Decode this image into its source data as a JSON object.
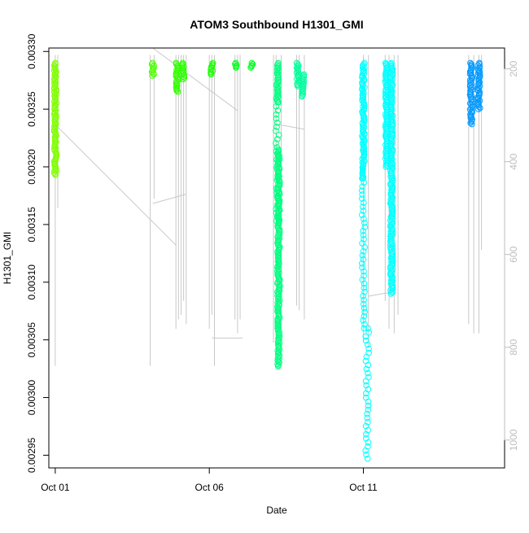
{
  "chart_data": {
    "type": "scatter",
    "title": "ATOM3 Southbound H1301_GMI",
    "xlabel": "Date",
    "ylabel": "H1301_GMI",
    "xlim": [
      "2016-09-30T19:00",
      "2016-10-15T14:00"
    ],
    "ylim": [
      0.002939,
      0.003303
    ],
    "y2lim": [
      1060,
      155
    ],
    "x_ticks": [
      {
        "date": "2016-10-01",
        "label": "Oct 01"
      },
      {
        "date": "2016-10-06",
        "label": "Oct 06"
      },
      {
        "date": "2016-10-11",
        "label": "Oct 11"
      }
    ],
    "y_ticks": [
      {
        "value": 0.00295,
        "label": "0.00295"
      },
      {
        "value": 0.003,
        "label": "0.00300"
      },
      {
        "value": 0.00305,
        "label": "0.00305"
      },
      {
        "value": 0.0031,
        "label": "0.00310"
      },
      {
        "value": 0.00315,
        "label": "0.00315"
      },
      {
        "value": 0.0032,
        "label": "0.00320"
      },
      {
        "value": 0.00325,
        "label": "0.00325"
      },
      {
        "value": 0.0033,
        "label": "0.00330"
      }
    ],
    "y2_ticks": [
      {
        "value": 200,
        "label": "200"
      },
      {
        "value": 400,
        "label": "400"
      },
      {
        "value": 600,
        "label": "600"
      },
      {
        "value": 800,
        "label": "800"
      },
      {
        "value": 1000,
        "label": "1000"
      }
    ],
    "grid": false,
    "point_series": [
      {
        "date": "2016-10-01T00:00",
        "ymin": 0.003193,
        "ymax": 0.00329,
        "color": "#80ff00",
        "sparse": false
      },
      {
        "date": "2016-10-04T04:00",
        "ymin": 0.003279,
        "ymax": 0.00329,
        "color": "#4cff00",
        "sparse": false
      },
      {
        "date": "2016-10-04T23:00",
        "ymin": 0.003265,
        "ymax": 0.00329,
        "color": "#33ff00",
        "sparse": false
      },
      {
        "date": "2016-10-05T04:00",
        "ymin": 0.003276,
        "ymax": 0.00329,
        "color": "#2bff00",
        "sparse": false
      },
      {
        "date": "2016-10-06T02:00",
        "ymin": 0.00328,
        "ymax": 0.00329,
        "color": "#1aff00",
        "sparse": false
      },
      {
        "date": "2016-10-06T21:00",
        "ymin": 0.003286,
        "ymax": 0.00329,
        "color": "#00ff1a",
        "sparse": false
      },
      {
        "date": "2016-10-07T09:00",
        "ymin": 0.003286,
        "ymax": 0.00329,
        "color": "#00ff20",
        "sparse": false
      },
      {
        "date": "2016-10-08T05:00",
        "ymin": 0.003256,
        "ymax": 0.00329,
        "color": "#00ff80",
        "sparse": false
      },
      {
        "date": "2016-10-08T05:00",
        "ymin": 0.003153,
        "ymax": 0.003256,
        "color": "#00ff80",
        "sparse": true
      },
      {
        "date": "2016-10-08T06:00",
        "ymin": 0.003153,
        "ymax": 0.003215,
        "color": "#00ff80",
        "sparse": false
      },
      {
        "date": "2016-10-08T06:00",
        "ymin": 0.003027,
        "ymax": 0.003153,
        "color": "#00ff80",
        "sparse": false
      },
      {
        "date": "2016-10-08T21:00",
        "ymin": 0.00327,
        "ymax": 0.00329,
        "color": "#00ff9a",
        "sparse": false
      },
      {
        "date": "2016-10-09T01:00",
        "ymin": 0.003261,
        "ymax": 0.00328,
        "color": "#00ff9f",
        "sparse": false
      },
      {
        "date": "2016-10-11T00:00",
        "ymin": 0.00319,
        "ymax": 0.00329,
        "color": "#00ffff",
        "sparse": false
      },
      {
        "date": "2016-10-11T00:00",
        "ymin": 0.00306,
        "ymax": 0.00319,
        "color": "#00ffff",
        "sparse": true
      },
      {
        "date": "2016-10-11T03:00",
        "ymin": 0.002947,
        "ymax": 0.00306,
        "color": "#00ffff",
        "sparse": true
      },
      {
        "date": "2016-10-11T18:00",
        "ymin": 0.0032,
        "ymax": 0.00329,
        "color": "#00ffff",
        "sparse": false
      },
      {
        "date": "2016-10-11T22:00",
        "ymin": 0.00309,
        "ymax": 0.00329,
        "color": "#00ffff",
        "sparse": false
      },
      {
        "date": "2016-10-14T12:00",
        "ymin": 0.003237,
        "ymax": 0.00329,
        "color": "#0099ff",
        "sparse": false
      },
      {
        "date": "2016-10-14T18:00",
        "ymin": 0.00325,
        "ymax": 0.00329,
        "color": "#0099ff",
        "sparse": false
      }
    ],
    "profile_lines_y2": [
      {
        "date": "2016-10-01T00:00",
        "depth_min": 170,
        "depth_max": 840
      },
      {
        "date": "2016-10-01T02:00",
        "depth_min": 170,
        "depth_max": 500
      },
      {
        "date": "2016-10-04T02:00",
        "depth_min": 170,
        "depth_max": 840
      },
      {
        "date": "2016-10-04T05:00",
        "depth_min": 170,
        "depth_max": 480
      },
      {
        "date": "2016-10-04T22:00",
        "depth_min": 170,
        "depth_max": 760
      },
      {
        "date": "2016-10-05T00:00",
        "depth_min": 170,
        "depth_max": 740
      },
      {
        "date": "2016-10-05T02:00",
        "depth_min": 170,
        "depth_max": 730
      },
      {
        "date": "2016-10-05T04:00",
        "depth_min": 170,
        "depth_max": 700
      },
      {
        "date": "2016-10-05T06:00",
        "depth_min": 170,
        "depth_max": 750
      },
      {
        "date": "2016-10-06T00:00",
        "depth_min": 170,
        "depth_max": 760
      },
      {
        "date": "2016-10-06T02:00",
        "depth_min": 170,
        "depth_max": 730
      },
      {
        "date": "2016-10-06T04:00",
        "depth_min": 170,
        "depth_max": 840
      },
      {
        "date": "2016-10-06T20:00",
        "depth_min": 170,
        "depth_max": 740
      },
      {
        "date": "2016-10-06T22:00",
        "depth_min": 170,
        "depth_max": 770
      },
      {
        "date": "2016-10-07T00:00",
        "depth_min": 170,
        "depth_max": 740
      },
      {
        "date": "2016-10-08T02:00",
        "depth_min": 170,
        "depth_max": 790
      },
      {
        "date": "2016-10-08T04:00",
        "depth_min": 170,
        "depth_max": 790
      },
      {
        "date": "2016-10-08T08:00",
        "depth_min": 170,
        "depth_max": 760
      },
      {
        "date": "2016-10-08T20:00",
        "depth_min": 170,
        "depth_max": 710
      },
      {
        "date": "2016-10-08T22:00",
        "depth_min": 170,
        "depth_max": 720
      },
      {
        "date": "2016-10-09T02:00",
        "depth_min": 170,
        "depth_max": 740
      },
      {
        "date": "2016-10-11T00:00",
        "depth_min": 170,
        "depth_max": 790
      },
      {
        "date": "2016-10-11T04:00",
        "depth_min": 170,
        "depth_max": 800
      },
      {
        "date": "2016-10-11T17:00",
        "depth_min": 170,
        "depth_max": 700
      },
      {
        "date": "2016-10-11T20:00",
        "depth_min": 170,
        "depth_max": 760
      },
      {
        "date": "2016-10-12T00:00",
        "depth_min": 170,
        "depth_max": 770
      },
      {
        "date": "2016-10-12T03:00",
        "depth_min": 170,
        "depth_max": 730
      },
      {
        "date": "2016-10-14T10:00",
        "depth_min": 170,
        "depth_max": 750
      },
      {
        "date": "2016-10-14T14:00",
        "depth_min": 170,
        "depth_max": 770
      },
      {
        "date": "2016-10-14T18:00",
        "depth_min": 170,
        "depth_max": 770
      },
      {
        "date": "2016-10-14T20:00",
        "depth_min": 170,
        "depth_max": 590
      }
    ],
    "transit_lines_y2": [
      {
        "from": [
          "2016-10-01T00:00",
          320
        ],
        "to": [
          "2016-10-04T22:00",
          580
        ]
      },
      {
        "from": [
          "2016-10-04T04:00",
          490
        ],
        "to": [
          "2016-10-05T06:00",
          470
        ]
      },
      {
        "from": [
          "2016-10-04T04:00",
          155
        ],
        "to": [
          "2016-10-06T22:00",
          290
        ]
      },
      {
        "from": [
          "2016-10-06T02:00",
          780
        ],
        "to": [
          "2016-10-07T02:00",
          780
        ]
      },
      {
        "from": [
          "2016-10-08T06:00",
          320
        ],
        "to": [
          "2016-10-09T02:00",
          330
        ]
      },
      {
        "from": [
          "2016-10-11T04:00",
          690
        ],
        "to": [
          "2016-10-12T00:00",
          680
        ]
      }
    ]
  }
}
